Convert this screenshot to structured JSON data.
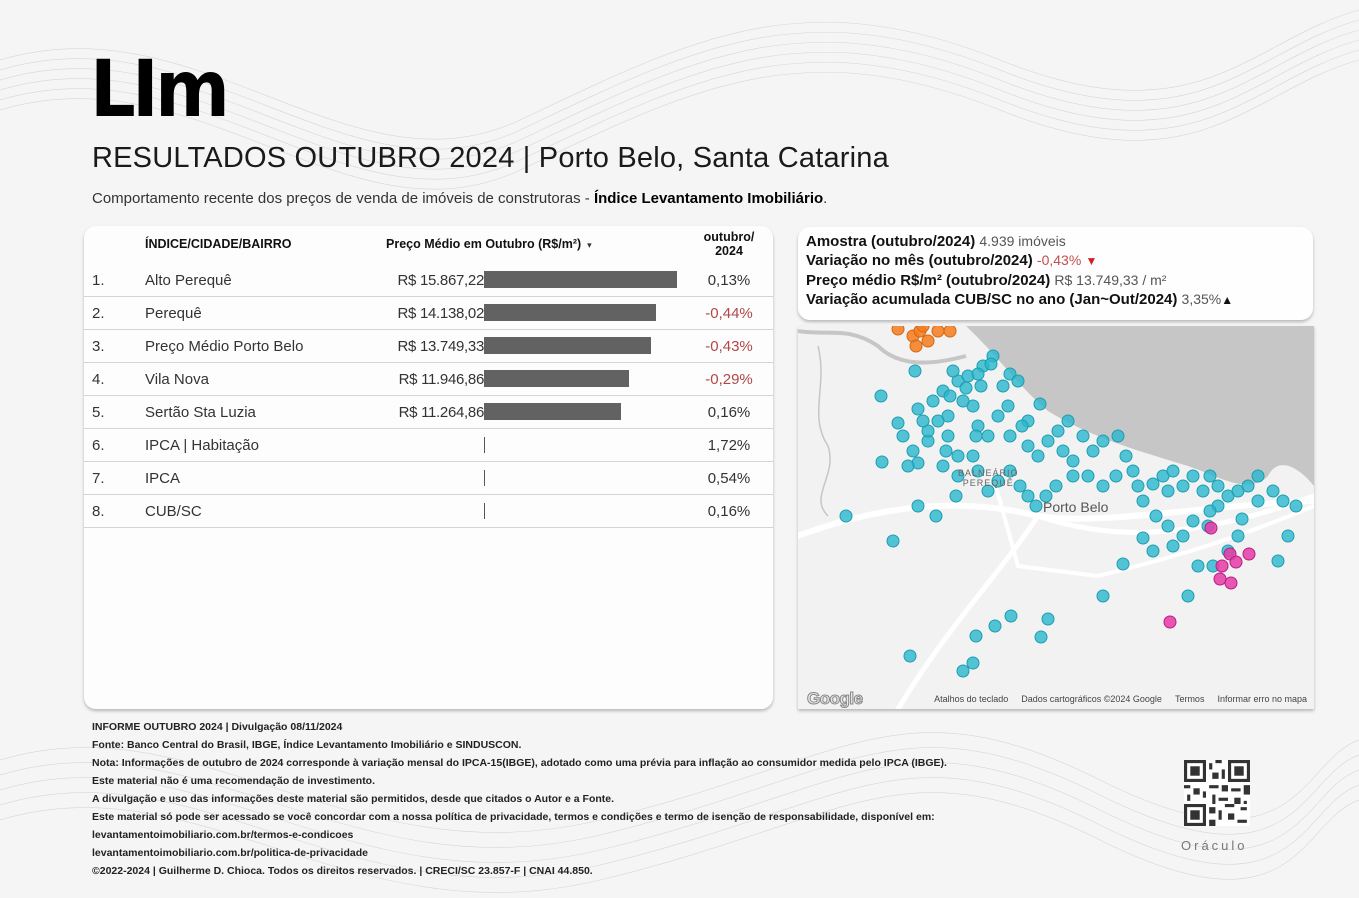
{
  "header": {
    "logo": "LIm",
    "title": "RESULTADOS OUTUBRO 2024 | Porto Belo, Santa Catarina",
    "subtitle_plain": "Comportamento recente dos preços de venda de imóveis de construtoras - ",
    "subtitle_bold": "Índice Levantamento Imobiliário",
    "subtitle_end": "."
  },
  "table": {
    "columns": {
      "name": "ÍNDICE/CIDADE/BAIRRO",
      "price": "Preço Médio em Outubro (R$/m²)",
      "sort_icon": "▾",
      "variation_line1": "outubro/",
      "variation_line2": "2024"
    },
    "rows": [
      {
        "num": "1.",
        "name": "Alto Perequê",
        "price": "R$ 15.867,22",
        "value": 15867.22,
        "variation": "0,13%",
        "negative": false
      },
      {
        "num": "2.",
        "name": "Perequê",
        "price": "R$ 14.138,02",
        "value": 14138.02,
        "variation": "-0,44%",
        "negative": true
      },
      {
        "num": "3.",
        "name": "Preço Médio Porto Belo",
        "price": "R$ 13.749,33",
        "value": 13749.33,
        "variation": "-0,43%",
        "negative": true
      },
      {
        "num": "4.",
        "name": "Vila Nova",
        "price": "R$ 11.946,86",
        "value": 11946.86,
        "variation": "-0,29%",
        "negative": true
      },
      {
        "num": "5.",
        "name": "Sertão Sta Luzia",
        "price": "R$ 11.264,86",
        "value": 11264.86,
        "variation": "0,16%",
        "negative": false
      },
      {
        "num": "6.",
        "name": "IPCA | Habitação",
        "price": "",
        "value": null,
        "variation": "1,72%",
        "negative": false
      },
      {
        "num": "7.",
        "name": "IPCA",
        "price": "",
        "value": null,
        "variation": "0,54%",
        "negative": false
      },
      {
        "num": "8.",
        "name": "CUB/SC",
        "price": "",
        "value": null,
        "variation": "0,16%",
        "negative": false
      }
    ]
  },
  "summary": {
    "sample_label": "Amostra (outubro/2024)",
    "sample_value": "4.939 imóveis",
    "month_var_label": "Variação no mês (outubro/2024)",
    "month_var_value": "-0,43%",
    "month_var_icon": "▼",
    "avg_price_label": "Preço médio R$/m² (outubro/2024)",
    "avg_price_value": "R$ 13.749,33 / m²",
    "cub_label": "Variação acumulada CUB/SC no ano (Jan~Out/2024)",
    "cub_value": "3,35%",
    "cub_icon": "▲"
  },
  "map": {
    "city_label": "Porto Belo",
    "district_line1": "BALNEÁRIO",
    "district_line2": "PEREQUÊ",
    "google_logo": "Google",
    "footer_links": [
      "Atalhos do teclado",
      "Dados cartográficos ©2024 Google",
      "Termos",
      "Informar erro no mapa"
    ],
    "colors": {
      "cyan": "#29b6cc",
      "orange": "#f57c1f",
      "magenta": "#e83aa8",
      "sea": "#c8c8c8",
      "land": "#f2f2f2"
    }
  },
  "footer": {
    "lines": [
      "INFORME OUTUBRO 2024 | Divulgação 08/11/2024",
      "Fonte: Banco Central do Brasil, IBGE, Índice Levantamento Imobiliário e SINDUSCON.",
      "Nota: Informações de outubro de 2024 corresponde à variação mensal do IPCA-15(IBGE), adotado como uma prévia para inflação ao consumidor medida pelo IPCA (IBGE).",
      "Este material não é uma recomendação de investimento.",
      "A divulgação e uso das informações deste material são permitidos, desde que citados o Autor e a Fonte.",
      "Este material só pode ser acessado se você concordar com a nossa política de privacidade, termos e condições e termo de isenção de responsabilidade, disponível em:",
      "levantamentoimobiliario.com.br/termos-e-condicoes",
      "levantamentoimobiliario.com.br/politica-de-privacidade",
      "©2022-2024 | Guilherme D. Chioca. Todos os direitos reservados. | CRECI/SC 23.857-F | CNAI 44.850."
    ],
    "qr_label": "Oráculo"
  }
}
